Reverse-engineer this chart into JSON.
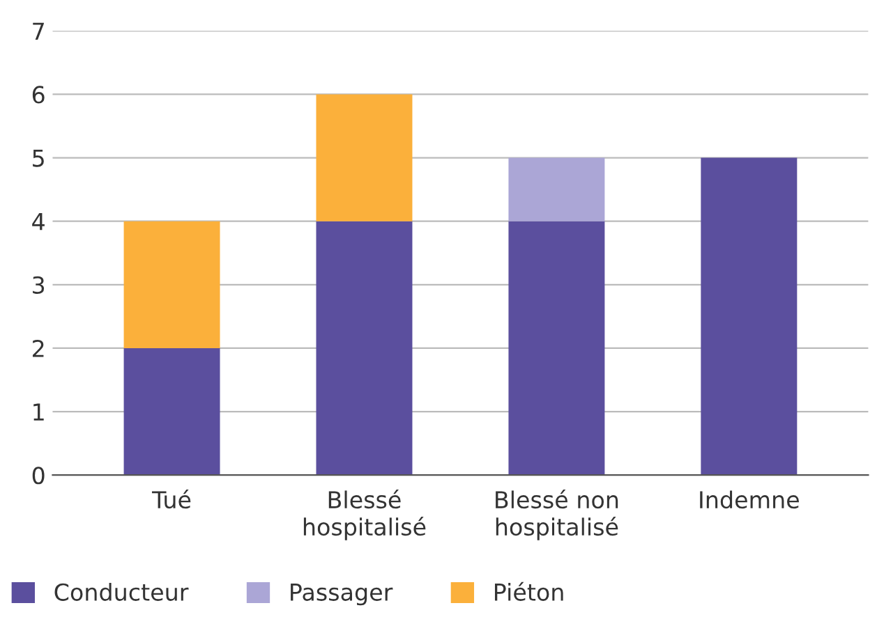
{
  "chart_data": {
    "type": "bar",
    "stacked": true,
    "categories": [
      "Tué",
      "Blessé hospitalisé",
      "Blessé non hospitalisé",
      "Indemne"
    ],
    "series": [
      {
        "name": "Conducteur",
        "color": "#5b4f9e",
        "values": [
          2,
          4,
          4,
          5
        ]
      },
      {
        "name": "Passager",
        "color": "#aba6d6",
        "values": [
          0,
          0,
          1,
          0
        ]
      },
      {
        "name": "Piéton",
        "color": "#fbb03b",
        "values": [
          2,
          2,
          0,
          0
        ]
      }
    ],
    "ylim": [
      0,
      7
    ],
    "yticks": [
      0,
      1,
      2,
      3,
      4,
      5,
      6,
      7
    ],
    "grid": "y",
    "legend": "bottom"
  }
}
